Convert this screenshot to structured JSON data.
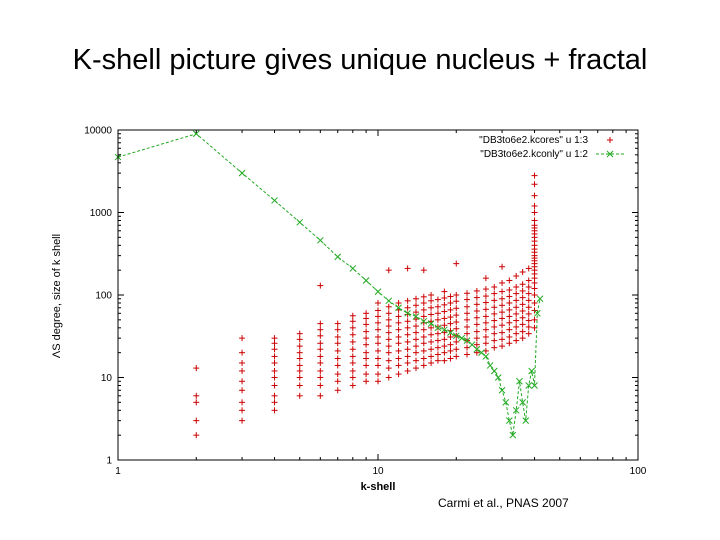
{
  "slide": {
    "title": "K-shell picture gives unique nucleus + fractal",
    "citation": "Carmi et al., PNAS 2007"
  },
  "chart_data": {
    "type": "scatter",
    "title": "",
    "xlabel": "k-shell",
    "ylabel": "ΛS degree, size of k shell",
    "x_scale": "log",
    "y_scale": "log",
    "xlim": [
      1,
      100
    ],
    "ylim": [
      1,
      10000
    ],
    "x_ticks": [
      1,
      10,
      100
    ],
    "y_ticks": [
      1,
      10,
      100,
      1000,
      10000
    ],
    "x_tick_labels": [
      "1",
      "10",
      "100"
    ],
    "y_tick_labels": [
      "1",
      "10",
      "100",
      "1000",
      "10000"
    ],
    "grid": false,
    "legend_position": "top-right",
    "series": [
      {
        "name": "\"DB3to6e2.kcores\" u 1:3",
        "style": "points",
        "marker": "plus",
        "color": "#cc0000",
        "columns": [
          {
            "x": 2,
            "ys": [
              2,
              3,
              5,
              6,
              13
            ]
          },
          {
            "x": 3,
            "ys": [
              3,
              4,
              5,
              7,
              9,
              12,
              15,
              20,
              30
            ]
          },
          {
            "x": 4,
            "ys": [
              4,
              5,
              6,
              8,
              10,
              12,
              15,
              18,
              22,
              26,
              30
            ]
          },
          {
            "x": 5,
            "ys": [
              6,
              8,
              10,
              12,
              14,
              17,
              20,
              24,
              29,
              34
            ]
          },
          {
            "x": 6,
            "ys": [
              6,
              8,
              10,
              12,
              15,
              18,
              22,
              26,
              32,
              38,
              45,
              130
            ]
          },
          {
            "x": 7,
            "ys": [
              7,
              9,
              11,
              14,
              17,
              21,
              26,
              31,
              38,
              45
            ]
          },
          {
            "x": 8,
            "ys": [
              8,
              10,
              12,
              15,
              18,
              22,
              27,
              33,
              40,
              48,
              56
            ]
          },
          {
            "x": 9,
            "ys": [
              9,
              11,
              14,
              17,
              20,
              25,
              30,
              36,
              44,
              52,
              60
            ]
          },
          {
            "x": 10,
            "ys": [
              9,
              11,
              14,
              17,
              21,
              26,
              31,
              38,
              46,
              55,
              65,
              80
            ]
          },
          {
            "x": 11,
            "ys": [
              10,
              13,
              16,
              20,
              24,
              29,
              35,
              42,
              50,
              60,
              72,
              200
            ]
          },
          {
            "x": 12,
            "ys": [
              11,
              14,
              17,
              21,
              26,
              31,
              38,
              46,
              55,
              66,
              80
            ]
          },
          {
            "x": 13,
            "ys": [
              12,
              15,
              18,
              22,
              27,
              33,
              40,
              48,
              58,
              70,
              85,
              210
            ]
          },
          {
            "x": 14,
            "ys": [
              13,
              16,
              20,
              24,
              29,
              35,
              42,
              51,
              62,
              75,
              90
            ]
          },
          {
            "x": 15,
            "ys": [
              14,
              17,
              21,
              26,
              31,
              38,
              46,
              55,
              66,
              80,
              95,
              200
            ]
          },
          {
            "x": 16,
            "ys": [
              15,
              18,
              22,
              27,
              33,
              40,
              48,
              58,
              70,
              85,
              100
            ]
          },
          {
            "x": 17,
            "ys": [
              16,
              19,
              23,
              28,
              34,
              41,
              50,
              60,
              72,
              88
            ]
          },
          {
            "x": 18,
            "ys": [
              16,
              20,
              24,
              29,
              35,
              43,
              52,
              63,
              76,
              92,
              110
            ]
          },
          {
            "x": 19,
            "ys": [
              17,
              21,
              25,
              31,
              37,
              45,
              54,
              66,
              80,
              96
            ]
          },
          {
            "x": 20,
            "ys": [
              18,
              22,
              27,
              32,
              39,
              47,
              57,
              69,
              84,
              100,
              240
            ]
          },
          {
            "x": 22,
            "ys": [
              19,
              23,
              28,
              34,
              41,
              50,
              60,
              72,
              88,
              105
            ]
          },
          {
            "x": 24,
            "ys": [
              20,
              25,
              30,
              36,
              44,
              53,
              64,
              77,
              93,
              112
            ]
          },
          {
            "x": 26,
            "ys": [
              21,
              26,
              31,
              38,
              46,
              55,
              67,
              81,
              97,
              118,
              160
            ]
          },
          {
            "x": 28,
            "ys": [
              23,
              28,
              34,
              41,
              49,
              59,
              71,
              86,
              104,
              125
            ]
          },
          {
            "x": 30,
            "ys": [
              24,
              29,
              35,
              43,
              52,
              62,
              75,
              90,
              110,
              140,
              220
            ]
          },
          {
            "x": 32,
            "ys": [
              26,
              31,
              38,
              46,
              55,
              66,
              80,
              96,
              115,
              150
            ]
          },
          {
            "x": 34,
            "ys": [
              28,
              34,
              41,
              49,
              59,
              71,
              86,
              104,
              125,
              170
            ]
          },
          {
            "x": 36,
            "ys": [
              30,
              36,
              44,
              53,
              64,
              77,
              93,
              112,
              135,
              190
            ]
          },
          {
            "x": 38,
            "ys": [
              34,
              41,
              49,
              59,
              71,
              86,
              104,
              125,
              150,
              210
            ]
          },
          {
            "x": 40,
            "ys": [
              40,
              50,
              65,
              80,
              100,
              120,
              140,
              160,
              180,
              200,
              220,
              240,
              260,
              280,
              300,
              330,
              360,
              400,
              450,
              500,
              550,
              600,
              650,
              700,
              800,
              1000,
              1200,
              1600,
              2200,
              2800
            ]
          }
        ]
      },
      {
        "name": "\"DB3to6e2.kconly\" u 1:2",
        "style": "linespoints",
        "marker": "x",
        "color": "#22aa22",
        "points": [
          [
            1,
            4700
          ],
          [
            2,
            9000
          ],
          [
            3,
            3000
          ],
          [
            4,
            1400
          ],
          [
            5,
            760
          ],
          [
            6,
            460
          ],
          [
            7,
            290
          ],
          [
            8,
            210
          ],
          [
            9,
            150
          ],
          [
            10,
            110
          ],
          [
            11,
            85
          ],
          [
            12,
            70
          ],
          [
            13,
            60
          ],
          [
            14,
            55
          ],
          [
            15,
            48
          ],
          [
            16,
            45
          ],
          [
            17,
            40
          ],
          [
            18,
            38
          ],
          [
            19,
            35
          ],
          [
            20,
            32
          ],
          [
            21,
            30
          ],
          [
            22,
            28
          ],
          [
            23,
            25
          ],
          [
            24,
            22
          ],
          [
            25,
            20
          ],
          [
            26,
            18
          ],
          [
            27,
            14
          ],
          [
            28,
            12
          ],
          [
            29,
            10
          ],
          [
            30,
            7
          ],
          [
            31,
            5
          ],
          [
            32,
            3
          ],
          [
            33,
            2
          ],
          [
            34,
            4
          ],
          [
            35,
            9
          ],
          [
            36,
            5
          ],
          [
            37,
            3
          ],
          [
            38,
            8
          ],
          [
            39,
            12
          ],
          [
            40,
            8
          ],
          [
            41,
            60
          ],
          [
            42,
            90
          ]
        ]
      }
    ]
  }
}
